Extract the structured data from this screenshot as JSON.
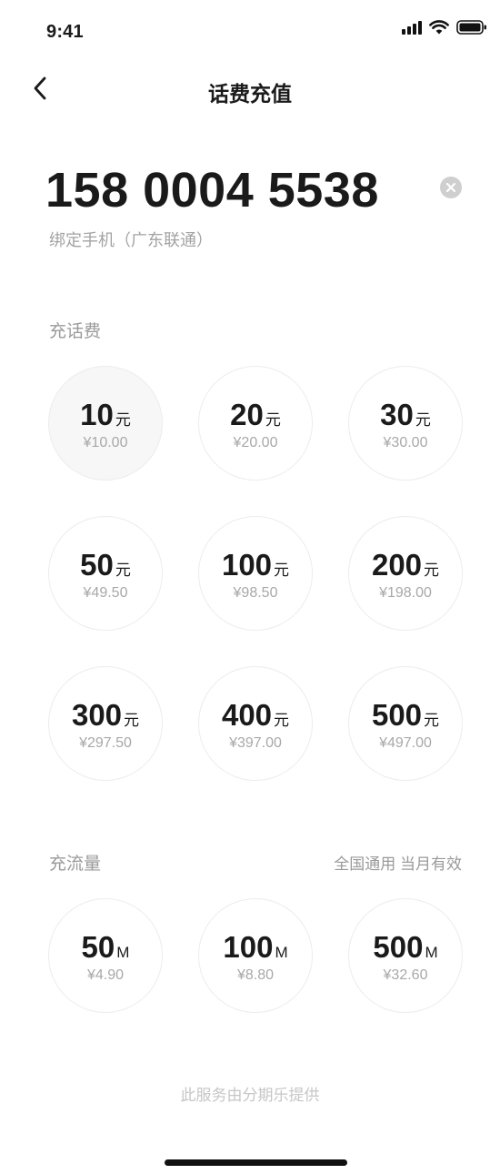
{
  "status_bar": {
    "time": "9:41"
  },
  "nav": {
    "title": "话费充值"
  },
  "phone": {
    "number": "158 0004 5538",
    "description": "绑定手机（广东联通）"
  },
  "topup": {
    "label": "充话费",
    "options": [
      {
        "amount": "10",
        "unit": "元",
        "price": "¥10.00",
        "selected": true
      },
      {
        "amount": "20",
        "unit": "元",
        "price": "¥20.00"
      },
      {
        "amount": "30",
        "unit": "元",
        "price": "¥30.00"
      },
      {
        "amount": "50",
        "unit": "元",
        "price": "¥49.50"
      },
      {
        "amount": "100",
        "unit": "元",
        "price": "¥98.50"
      },
      {
        "amount": "200",
        "unit": "元",
        "price": "¥198.00"
      },
      {
        "amount": "300",
        "unit": "元",
        "price": "¥297.50"
      },
      {
        "amount": "400",
        "unit": "元",
        "price": "¥397.00"
      },
      {
        "amount": "500",
        "unit": "元",
        "price": "¥497.00"
      }
    ]
  },
  "data_plan": {
    "label": "充流量",
    "note": "全国通用 当月有效",
    "options": [
      {
        "amount": "50",
        "unit": "M",
        "price": "¥4.90"
      },
      {
        "amount": "100",
        "unit": "M",
        "price": "¥8.80"
      },
      {
        "amount": "500",
        "unit": "M",
        "price": "¥32.60"
      }
    ]
  },
  "footer": {
    "note": "此服务由分期乐提供"
  }
}
